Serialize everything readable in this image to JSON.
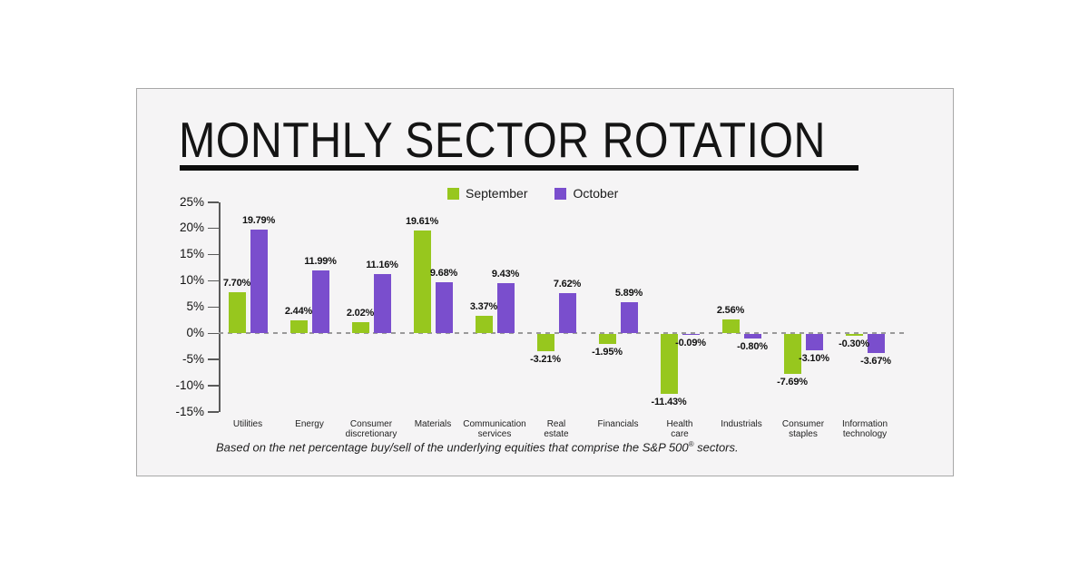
{
  "page": {
    "background": "#ffffff",
    "card_background": "#f5f4f5",
    "card_border": "#a8a8a8",
    "title_color": "#141414",
    "underline_color": "#0d0d0d"
  },
  "chart_data": {
    "type": "bar",
    "title": "MONTHLY SECTOR ROTATION",
    "legend_position": "top-center",
    "grid": false,
    "zero_line_style": "dashed",
    "categories": [
      [
        "Utilities"
      ],
      [
        "Energy"
      ],
      [
        "Consumer",
        "discretionary"
      ],
      [
        "Materials"
      ],
      [
        "Communication",
        "services"
      ],
      [
        "Real",
        "estate"
      ],
      [
        "Financials"
      ],
      [
        "Health",
        "care"
      ],
      [
        "Industrials"
      ],
      [
        "Consumer",
        "staples"
      ],
      [
        "Information",
        "technology"
      ]
    ],
    "series": [
      {
        "name": "September",
        "color": "#97c71e",
        "values": [
          7.7,
          2.44,
          2.02,
          19.61,
          3.37,
          -3.21,
          -1.95,
          -11.43,
          2.56,
          -7.69,
          -0.3
        ],
        "labels": [
          "7.70%",
          "2.44%",
          "2.02%",
          "19.61%",
          "3.37%",
          "-3.21%",
          "-1.95%",
          "-11.43%",
          "2.56%",
          "-7.69%",
          "-0.30%"
        ]
      },
      {
        "name": "October",
        "color": "#7a4ecd",
        "values": [
          19.79,
          11.99,
          11.16,
          9.68,
          9.43,
          7.62,
          5.89,
          -0.09,
          -0.8,
          -3.1,
          -3.67
        ],
        "labels": [
          "19.79%",
          "11.99%",
          "11.16%",
          "9.68%",
          "9.43%",
          "7.62%",
          "5.89%",
          "-0.09%",
          "-0.80%",
          "-3.10%",
          "-3.67%"
        ]
      }
    ],
    "y_axis": {
      "min": -15,
      "max": 25,
      "tick_labels": [
        "25%",
        "20%",
        "15%",
        "10%",
        "5%",
        "0%",
        "-5%",
        "-10%",
        "-15%"
      ]
    },
    "footnote": {
      "pre": "Based on the net percentage buy/sell of the underlying equities that comprise the S&P 500",
      "sup": "®",
      "post": " sectors."
    }
  }
}
